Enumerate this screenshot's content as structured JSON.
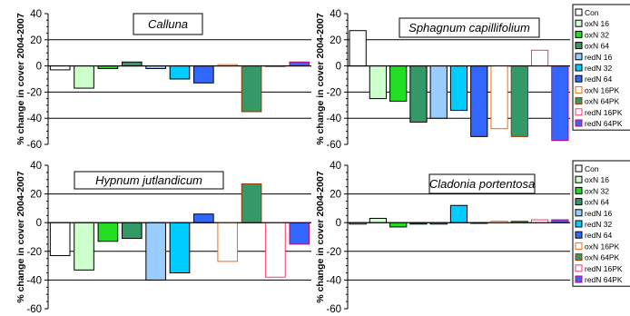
{
  "colors": {
    "Con": "#ffffff",
    "oxN 16": "#ccffcc",
    "oxN 32": "#22dd22",
    "oxN 64": "#339966",
    "redN 16": "#99ccff",
    "redN 32": "#00ccff",
    "redN 64": "#3366ff",
    "oxN 16PK": "#ffffff",
    "oxN 64PK": "#339966",
    "redN 16PK": "#ffffff",
    "redN 64PK": "#3366ff"
  },
  "border_colors": {
    "oxN 16PK": "#ff6600",
    "oxN 64PK": "#993300",
    "redN 16PK": "#ff3366",
    "redN 64PK": "#cc0066"
  },
  "chart_data": [
    {
      "type": "bar",
      "title": "Calluna",
      "ylabel": "% change in cover 2004-2007",
      "ylim": [
        -60,
        40
      ],
      "yticks": [
        40,
        20,
        0,
        -20,
        -40,
        -60
      ],
      "categories": [
        "Con",
        "oxN 16",
        "oxN 32",
        "oxN 64",
        "redN 16",
        "redN 32",
        "redN 64",
        "oxN 16PK",
        "oxN 64PK",
        "redN 16PK",
        "redN 64PK"
      ],
      "values": [
        -3,
        -17,
        -2,
        3,
        -2,
        -10,
        -13,
        1,
        -35,
        0,
        3
      ],
      "grid": true,
      "legend": null
    },
    {
      "type": "bar",
      "title": "Sphagnum capillifolium",
      "ylabel": "% change in cover 2004-2007",
      "ylim": [
        -60,
        40
      ],
      "yticks": [
        40,
        20,
        0,
        -20,
        -40,
        -60
      ],
      "categories": [
        "Con",
        "oxN 16",
        "oxN 32",
        "oxN 64",
        "redN 16",
        "redN 32",
        "redN 64",
        "oxN 16PK",
        "oxN 64PK",
        "redN 16PK",
        "redN 64PK"
      ],
      "values": [
        27,
        -25,
        -27,
        -43,
        -40,
        -34,
        -54,
        -48,
        -54,
        12,
        -57
      ],
      "grid": true,
      "legend": [
        "Con",
        "oxN 16",
        "oxN 32",
        "oxN 64",
        "redN 16",
        "redN 32",
        "redN 64",
        "oxN 16PK",
        "oxN 64PK",
        "redN 16PK",
        "redN 64PK"
      ]
    },
    {
      "type": "bar",
      "title": "Hypnum jutlandicum",
      "ylabel": "% change in cover 2004-2007",
      "ylim": [
        -60,
        40
      ],
      "yticks": [
        40,
        20,
        0,
        -20,
        -40,
        -60
      ],
      "categories": [
        "Con",
        "oxN 16",
        "oxN 32",
        "oxN 64",
        "redN 16",
        "redN 32",
        "redN 64",
        "oxN 16PK",
        "oxN 64PK",
        "redN 16PK",
        "redN 64PK"
      ],
      "values": [
        -23,
        -33,
        -13,
        -11,
        -40,
        -35,
        6,
        -27,
        27,
        -38,
        -15
      ],
      "grid": true,
      "legend": null
    },
    {
      "type": "bar",
      "title": "Cladonia portentosa",
      "ylabel": "% change in cover 2004-2007",
      "ylim": [
        -60,
        40
      ],
      "yticks": [
        40,
        20,
        0,
        -20,
        -40,
        -60
      ],
      "categories": [
        "Con",
        "oxN 16",
        "oxN 32",
        "oxN 64",
        "redN 16",
        "redN 32",
        "redN 64",
        "oxN 16PK",
        "oxN 64PK",
        "redN 16PK",
        "redN 64PK"
      ],
      "values": [
        -1,
        3,
        -3,
        -1,
        -1,
        12,
        0,
        1,
        1,
        2,
        2
      ],
      "grid": true,
      "legend": [
        "Con",
        "oxN 16",
        "oxN 32",
        "oxN 64",
        "redN 16",
        "redN 32",
        "redN 64",
        "oxN 16PK",
        "oxN 64PK",
        "redN 16PK",
        "redN 64PK"
      ]
    }
  ]
}
